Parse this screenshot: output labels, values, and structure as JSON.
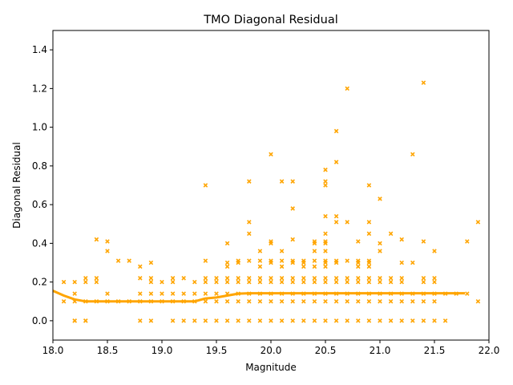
{
  "chart_data": {
    "type": "scatter",
    "title": "TMO Diagonal Residual",
    "xlabel": "Magnitude",
    "ylabel": "Diagonal Residual",
    "xlim": [
      18.0,
      22.0
    ],
    "ylim": [
      -0.1,
      1.5
    ],
    "xticks": [
      "18.0",
      "18.5",
      "19.0",
      "19.5",
      "20.0",
      "20.5",
      "21.0",
      "21.5",
      "22.0"
    ],
    "yticks": [
      "0.0",
      "0.2",
      "0.4",
      "0.6",
      "0.8",
      "1.0",
      "1.2",
      "1.4"
    ],
    "grid": false,
    "marker": "x",
    "color": "#FFA500",
    "scatter_points": [
      [
        18.1,
        0.2
      ],
      [
        18.1,
        0.1
      ],
      [
        18.2,
        0.2
      ],
      [
        18.2,
        0.14
      ],
      [
        18.2,
        0.1
      ],
      [
        18.2,
        0.0
      ],
      [
        18.2,
        0.0
      ],
      [
        18.3,
        0.22
      ],
      [
        18.3,
        0.2
      ],
      [
        18.3,
        0.1
      ],
      [
        18.3,
        0.0
      ],
      [
        18.3,
        0.0
      ],
      [
        18.4,
        0.42
      ],
      [
        18.4,
        0.22
      ],
      [
        18.4,
        0.2
      ],
      [
        18.4,
        0.1
      ],
      [
        18.5,
        0.41
      ],
      [
        18.5,
        0.36
      ],
      [
        18.5,
        0.14
      ],
      [
        18.5,
        0.1
      ],
      [
        18.6,
        0.31
      ],
      [
        18.6,
        0.1
      ],
      [
        18.7,
        0.31
      ],
      [
        18.7,
        0.1
      ],
      [
        18.8,
        0.28
      ],
      [
        18.8,
        0.22
      ],
      [
        18.8,
        0.14
      ],
      [
        18.8,
        0.1
      ],
      [
        18.8,
        0.0
      ],
      [
        18.9,
        0.3
      ],
      [
        18.9,
        0.22
      ],
      [
        18.9,
        0.2
      ],
      [
        18.9,
        0.14
      ],
      [
        18.9,
        0.1
      ],
      [
        18.9,
        0.0
      ],
      [
        19.0,
        0.2
      ],
      [
        19.0,
        0.14
      ],
      [
        19.0,
        0.1
      ],
      [
        19.1,
        0.22
      ],
      [
        19.1,
        0.2
      ],
      [
        19.1,
        0.14
      ],
      [
        19.1,
        0.1
      ],
      [
        19.1,
        0.0
      ],
      [
        19.2,
        0.22
      ],
      [
        19.2,
        0.14
      ],
      [
        19.2,
        0.1
      ],
      [
        19.2,
        0.0
      ],
      [
        19.3,
        0.2
      ],
      [
        19.3,
        0.14
      ],
      [
        19.3,
        0.1
      ],
      [
        19.3,
        0.0
      ],
      [
        19.4,
        0.7
      ],
      [
        19.4,
        0.31
      ],
      [
        19.4,
        0.22
      ],
      [
        19.4,
        0.2
      ],
      [
        19.4,
        0.14
      ],
      [
        19.4,
        0.1
      ],
      [
        19.4,
        0.0
      ],
      [
        19.5,
        0.22
      ],
      [
        19.5,
        0.2
      ],
      [
        19.5,
        0.14
      ],
      [
        19.5,
        0.1
      ],
      [
        19.5,
        0.0
      ],
      [
        19.6,
        0.4
      ],
      [
        19.6,
        0.3
      ],
      [
        19.6,
        0.28
      ],
      [
        19.6,
        0.22
      ],
      [
        19.6,
        0.2
      ],
      [
        19.6,
        0.14
      ],
      [
        19.6,
        0.1
      ],
      [
        19.6,
        0.0
      ],
      [
        19.7,
        0.31
      ],
      [
        19.7,
        0.3
      ],
      [
        19.7,
        0.22
      ],
      [
        19.7,
        0.2
      ],
      [
        19.7,
        0.14
      ],
      [
        19.7,
        0.1
      ],
      [
        19.7,
        0.0
      ],
      [
        19.8,
        0.72
      ],
      [
        19.8,
        0.51
      ],
      [
        19.8,
        0.45
      ],
      [
        19.8,
        0.31
      ],
      [
        19.8,
        0.22
      ],
      [
        19.8,
        0.2
      ],
      [
        19.8,
        0.14
      ],
      [
        19.8,
        0.1
      ],
      [
        19.8,
        0.0
      ],
      [
        19.9,
        0.36
      ],
      [
        19.9,
        0.31
      ],
      [
        19.9,
        0.28
      ],
      [
        19.9,
        0.22
      ],
      [
        19.9,
        0.2
      ],
      [
        19.9,
        0.14
      ],
      [
        19.9,
        0.1
      ],
      [
        19.9,
        0.0
      ],
      [
        20.0,
        0.86
      ],
      [
        20.0,
        0.41
      ],
      [
        20.0,
        0.4
      ],
      [
        20.0,
        0.31
      ],
      [
        20.0,
        0.3
      ],
      [
        20.0,
        0.22
      ],
      [
        20.0,
        0.2
      ],
      [
        20.0,
        0.14
      ],
      [
        20.0,
        0.1
      ],
      [
        20.0,
        0.0
      ],
      [
        20.1,
        0.72
      ],
      [
        20.1,
        0.36
      ],
      [
        20.1,
        0.31
      ],
      [
        20.1,
        0.28
      ],
      [
        20.1,
        0.22
      ],
      [
        20.1,
        0.2
      ],
      [
        20.1,
        0.14
      ],
      [
        20.1,
        0.1
      ],
      [
        20.1,
        0.0
      ],
      [
        20.2,
        0.72
      ],
      [
        20.2,
        0.58
      ],
      [
        20.2,
        0.42
      ],
      [
        20.2,
        0.31
      ],
      [
        20.2,
        0.3
      ],
      [
        20.2,
        0.22
      ],
      [
        20.2,
        0.2
      ],
      [
        20.2,
        0.14
      ],
      [
        20.2,
        0.1
      ],
      [
        20.2,
        0.0
      ],
      [
        20.3,
        0.31
      ],
      [
        20.3,
        0.3
      ],
      [
        20.3,
        0.28
      ],
      [
        20.3,
        0.22
      ],
      [
        20.3,
        0.2
      ],
      [
        20.3,
        0.14
      ],
      [
        20.3,
        0.1
      ],
      [
        20.3,
        0.0
      ],
      [
        20.4,
        0.41
      ],
      [
        20.4,
        0.4
      ],
      [
        20.4,
        0.36
      ],
      [
        20.4,
        0.31
      ],
      [
        20.4,
        0.28
      ],
      [
        20.4,
        0.22
      ],
      [
        20.4,
        0.2
      ],
      [
        20.4,
        0.14
      ],
      [
        20.4,
        0.1
      ],
      [
        20.4,
        0.0
      ],
      [
        20.5,
        0.78
      ],
      [
        20.5,
        0.72
      ],
      [
        20.5,
        0.7
      ],
      [
        20.5,
        0.54
      ],
      [
        20.5,
        0.45
      ],
      [
        20.5,
        0.41
      ],
      [
        20.5,
        0.4
      ],
      [
        20.5,
        0.36
      ],
      [
        20.5,
        0.31
      ],
      [
        20.5,
        0.3
      ],
      [
        20.5,
        0.28
      ],
      [
        20.5,
        0.22
      ],
      [
        20.5,
        0.2
      ],
      [
        20.5,
        0.14
      ],
      [
        20.5,
        0.1
      ],
      [
        20.5,
        0.0
      ],
      [
        20.6,
        0.98
      ],
      [
        20.6,
        0.82
      ],
      [
        20.6,
        0.54
      ],
      [
        20.6,
        0.51
      ],
      [
        20.6,
        0.31
      ],
      [
        20.6,
        0.3
      ],
      [
        20.6,
        0.22
      ],
      [
        20.6,
        0.2
      ],
      [
        20.6,
        0.14
      ],
      [
        20.6,
        0.1
      ],
      [
        20.6,
        0.0
      ],
      [
        20.7,
        1.2
      ],
      [
        20.7,
        0.51
      ],
      [
        20.7,
        0.31
      ],
      [
        20.7,
        0.22
      ],
      [
        20.7,
        0.2
      ],
      [
        20.7,
        0.14
      ],
      [
        20.7,
        0.1
      ],
      [
        20.7,
        0.0
      ],
      [
        20.8,
        0.41
      ],
      [
        20.8,
        0.31
      ],
      [
        20.8,
        0.3
      ],
      [
        20.8,
        0.28
      ],
      [
        20.8,
        0.22
      ],
      [
        20.8,
        0.2
      ],
      [
        20.8,
        0.14
      ],
      [
        20.8,
        0.1
      ],
      [
        20.8,
        0.0
      ],
      [
        20.9,
        0.7
      ],
      [
        20.9,
        0.51
      ],
      [
        20.9,
        0.45
      ],
      [
        20.9,
        0.31
      ],
      [
        20.9,
        0.3
      ],
      [
        20.9,
        0.28
      ],
      [
        20.9,
        0.22
      ],
      [
        20.9,
        0.2
      ],
      [
        20.9,
        0.14
      ],
      [
        20.9,
        0.1
      ],
      [
        20.9,
        0.0
      ],
      [
        21.0,
        0.63
      ],
      [
        21.0,
        0.4
      ],
      [
        21.0,
        0.36
      ],
      [
        21.0,
        0.22
      ],
      [
        21.0,
        0.2
      ],
      [
        21.0,
        0.14
      ],
      [
        21.0,
        0.1
      ],
      [
        21.0,
        0.0
      ],
      [
        21.1,
        0.45
      ],
      [
        21.1,
        0.22
      ],
      [
        21.1,
        0.2
      ],
      [
        21.1,
        0.14
      ],
      [
        21.1,
        0.1
      ],
      [
        21.1,
        0.0
      ],
      [
        21.2,
        0.42
      ],
      [
        21.2,
        0.3
      ],
      [
        21.2,
        0.22
      ],
      [
        21.2,
        0.2
      ],
      [
        21.2,
        0.14
      ],
      [
        21.2,
        0.1
      ],
      [
        21.2,
        0.0
      ],
      [
        21.3,
        0.86
      ],
      [
        21.3,
        0.3
      ],
      [
        21.3,
        0.14
      ],
      [
        21.3,
        0.1
      ],
      [
        21.3,
        0.0
      ],
      [
        21.4,
        1.23
      ],
      [
        21.4,
        0.41
      ],
      [
        21.4,
        0.22
      ],
      [
        21.4,
        0.2
      ],
      [
        21.4,
        0.14
      ],
      [
        21.4,
        0.1
      ],
      [
        21.4,
        0.0
      ],
      [
        21.5,
        0.36
      ],
      [
        21.5,
        0.22
      ],
      [
        21.5,
        0.2
      ],
      [
        21.5,
        0.14
      ],
      [
        21.5,
        0.1
      ],
      [
        21.5,
        0.0
      ],
      [
        21.6,
        0.14
      ],
      [
        21.6,
        0.0
      ],
      [
        21.7,
        0.14
      ],
      [
        21.8,
        0.41
      ],
      [
        21.8,
        0.14
      ],
      [
        21.9,
        0.51
      ],
      [
        21.9,
        0.1
      ]
    ],
    "trend_line": [
      [
        18.0,
        0.155
      ],
      [
        18.1,
        0.13
      ],
      [
        18.2,
        0.11
      ],
      [
        18.3,
        0.1
      ],
      [
        18.4,
        0.1
      ],
      [
        18.6,
        0.1
      ],
      [
        18.8,
        0.1
      ],
      [
        19.0,
        0.1
      ],
      [
        19.2,
        0.1
      ],
      [
        19.3,
        0.1
      ],
      [
        19.4,
        0.115
      ],
      [
        19.5,
        0.12
      ],
      [
        19.6,
        0.13
      ],
      [
        19.7,
        0.14
      ],
      [
        19.8,
        0.142
      ],
      [
        20.0,
        0.142
      ],
      [
        20.5,
        0.142
      ],
      [
        21.0,
        0.142
      ],
      [
        21.5,
        0.142
      ],
      [
        21.78,
        0.142
      ]
    ]
  }
}
